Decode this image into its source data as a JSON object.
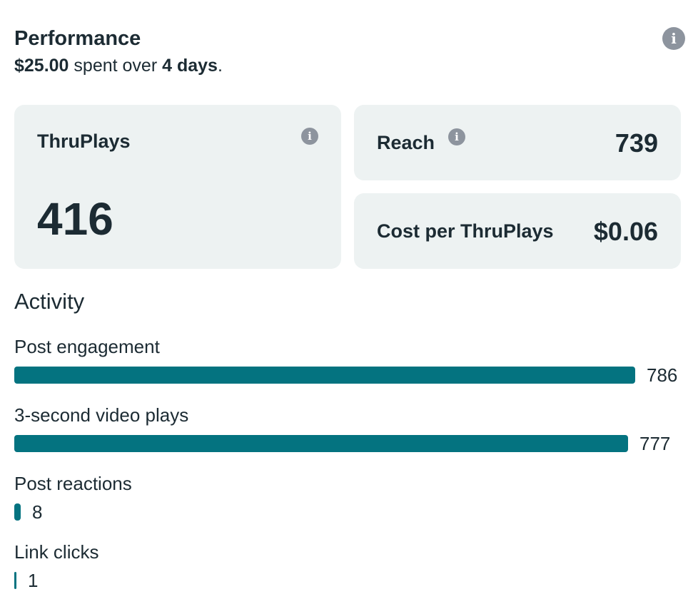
{
  "performance": {
    "title": "Performance",
    "spent": "$25.00",
    "spent_text": "spent over",
    "duration": "4 days",
    "period": "."
  },
  "cards": {
    "thruplays": {
      "label": "ThruPlays",
      "value": "416"
    },
    "reach": {
      "label": "Reach",
      "value": "739"
    },
    "cost": {
      "label": "Cost per ThruPlays",
      "value": "$0.06"
    }
  },
  "activity": {
    "title": "Activity",
    "max": 786,
    "items": [
      {
        "label": "Post engagement",
        "value": 786
      },
      {
        "label": "3-second video plays",
        "value": 777
      },
      {
        "label": "Post reactions",
        "value": 8
      },
      {
        "label": "Link clicks",
        "value": 1
      }
    ]
  },
  "icons": {
    "info": "i"
  },
  "colors": {
    "bar": "#047380",
    "card_bg": "#edf2f2",
    "text": "#1c2b33",
    "icon": "#8d949e"
  }
}
